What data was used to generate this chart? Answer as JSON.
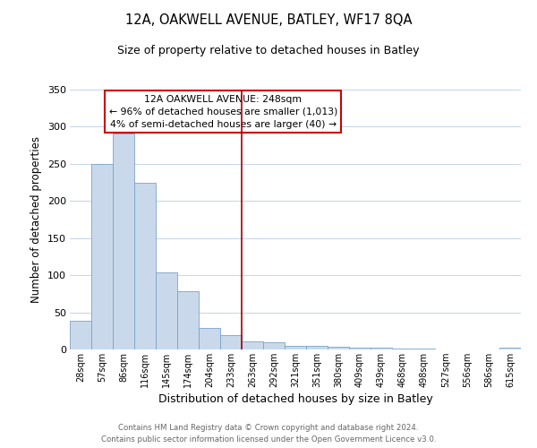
{
  "title1": "12A, OAKWELL AVENUE, BATLEY, WF17 8QA",
  "title2": "Size of property relative to detached houses in Batley",
  "xlabel": "Distribution of detached houses by size in Batley",
  "ylabel": "Number of detached properties",
  "bar_labels": [
    "28sqm",
    "57sqm",
    "86sqm",
    "116sqm",
    "145sqm",
    "174sqm",
    "204sqm",
    "233sqm",
    "263sqm",
    "292sqm",
    "321sqm",
    "351sqm",
    "380sqm",
    "409sqm",
    "439sqm",
    "468sqm",
    "498sqm",
    "527sqm",
    "556sqm",
    "586sqm",
    "615sqm"
  ],
  "bar_values": [
    39,
    250,
    291,
    224,
    104,
    78,
    29,
    19,
    11,
    10,
    5,
    5,
    4,
    2,
    2,
    1,
    1,
    0,
    0,
    0,
    2
  ],
  "bar_color": "#c9d9eb",
  "bar_edge_color": "#7ba3c8",
  "vline_x": 7.5,
  "vline_color": "#aa0000",
  "ylim": [
    0,
    350
  ],
  "yticks": [
    0,
    50,
    100,
    150,
    200,
    250,
    300,
    350
  ],
  "annotation_title": "12A OAKWELL AVENUE: 248sqm",
  "annotation_line1": "← 96% of detached houses are smaller (1,013)",
  "annotation_line2": "4% of semi-detached houses are larger (40) →",
  "annotation_box_color": "#ffffff",
  "annotation_box_edge": "#cc0000",
  "footer1": "Contains HM Land Registry data © Crown copyright and database right 2024.",
  "footer2": "Contains public sector information licensed under the Open Government Licence v3.0.",
  "background_color": "#ffffff",
  "grid_color": "#c5d5e8"
}
